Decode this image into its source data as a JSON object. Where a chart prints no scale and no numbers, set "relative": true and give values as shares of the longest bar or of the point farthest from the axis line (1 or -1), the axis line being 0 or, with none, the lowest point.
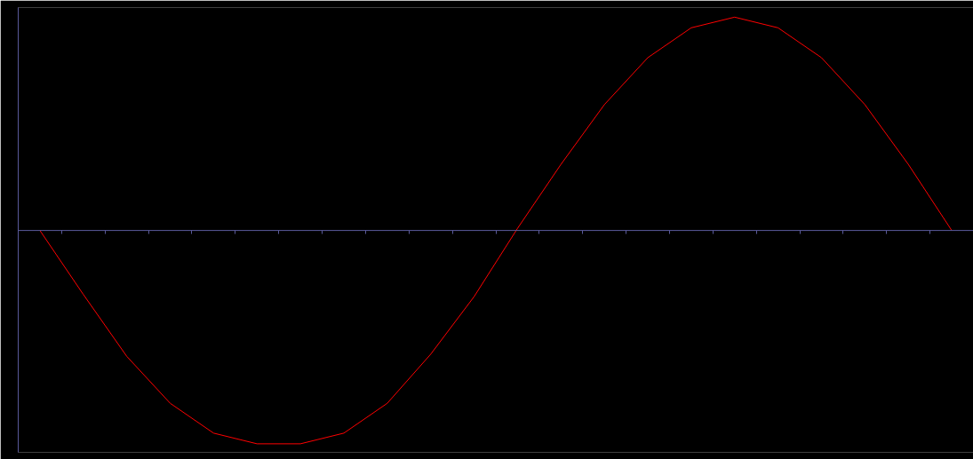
{
  "chart_data": {
    "type": "line",
    "relative": true,
    "categories": [
      null,
      null,
      null,
      null,
      null,
      null,
      null,
      null,
      null,
      null,
      null,
      null,
      null,
      null,
      null,
      null,
      null,
      null,
      null,
      null,
      null,
      null
    ],
    "series": [
      {
        "color": "#ff0000",
        "values": [
          0,
          -0.3,
          -0.59,
          -0.81,
          -0.95,
          -1.0,
          -1.0,
          -0.95,
          -0.81,
          -0.58,
          -0.31,
          0.01,
          0.31,
          0.59,
          0.81,
          0.95,
          1.0,
          0.95,
          0.81,
          0.59,
          0.31,
          0
        ]
      }
    ],
    "ref_lines": [
      {
        "axis": "y",
        "value": 0,
        "color": "#5a5a9a"
      }
    ],
    "grid": false,
    "marker": "none",
    "line_style": "solid"
  }
}
